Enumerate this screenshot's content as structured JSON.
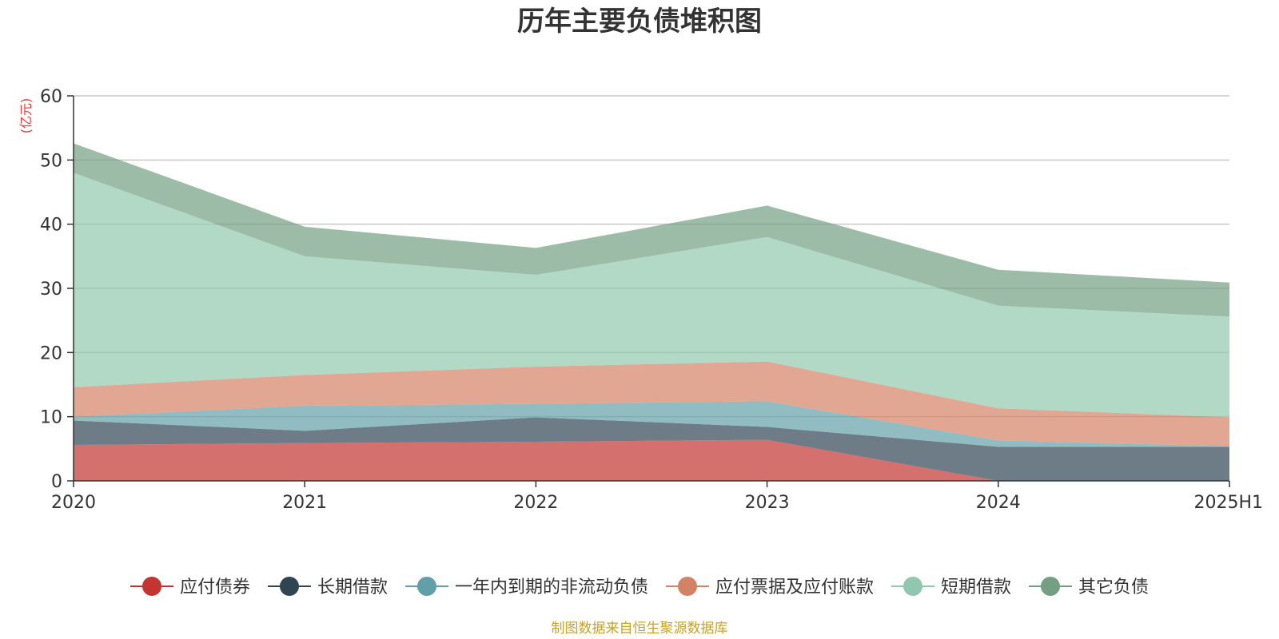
{
  "chart_data": {
    "type": "area",
    "stacked": true,
    "title": "历年主要负债堆积图",
    "unit_label": "(亿元)",
    "categories": [
      "2020",
      "2021",
      "2022",
      "2023",
      "2024",
      "2025H1"
    ],
    "ylim": [
      0,
      60
    ],
    "yticks": [
      0,
      10,
      20,
      30,
      40,
      50,
      60
    ],
    "grid": true,
    "legend_position": "bottom",
    "series": [
      {
        "name": "应付债券",
        "color": "#c23531",
        "values": [
          5.6,
          5.9,
          6.1,
          6.4,
          0,
          0
        ]
      },
      {
        "name": "长期借款",
        "color": "#2f4554",
        "values": [
          3.8,
          1.9,
          3.8,
          2.0,
          5.3,
          5.3
        ]
      },
      {
        "name": "一年内到期的非流动负债",
        "color": "#61a0a8",
        "values": [
          0.6,
          3.9,
          2.1,
          4.0,
          1.0,
          0.1
        ]
      },
      {
        "name": "应付票据及应付账款",
        "color": "#d48265",
        "values": [
          4.6,
          4.8,
          5.8,
          6.2,
          5.0,
          4.5
        ]
      },
      {
        "name": "短期借款",
        "color": "#91c7ae",
        "values": [
          33.4,
          18.5,
          14.3,
          19.4,
          16.0,
          15.7
        ]
      },
      {
        "name": "其它负债",
        "color": "#749f83",
        "values": [
          4.6,
          4.6,
          4.2,
          4.9,
          5.6,
          5.3
        ]
      }
    ]
  },
  "footer": {
    "source": "制图数据来自恒生聚源数据库"
  }
}
